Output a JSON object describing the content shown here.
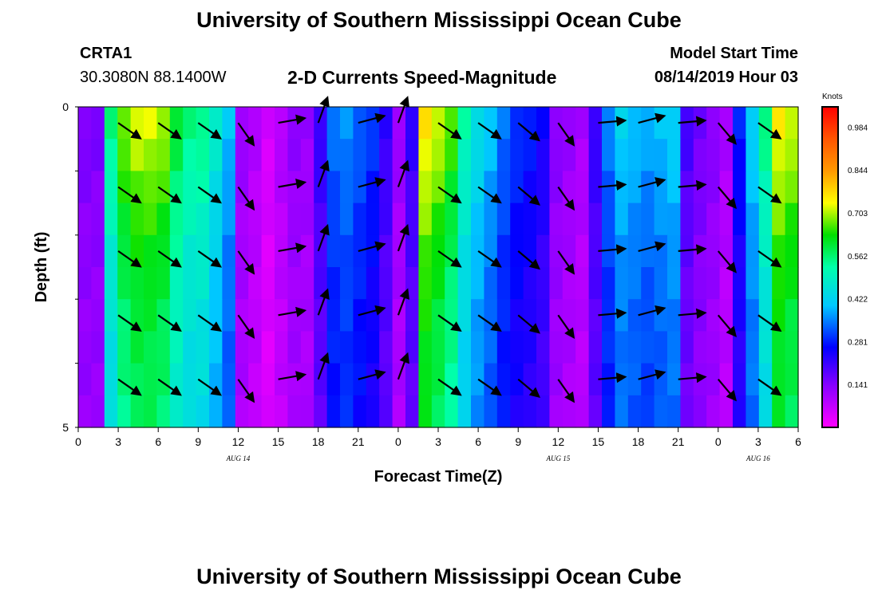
{
  "header": {
    "title_top": "University of Southern Mississippi Ocean Cube",
    "station_id": "CRTA1",
    "station_coords": "30.3080N 88.1400W",
    "plot_title": "2-D Currents Speed-Magnitude",
    "model_start_label": "Model Start Time",
    "model_start_value": "08/14/2019 Hour 03",
    "title_bottom": "University of Southern Mississippi Ocean Cube"
  },
  "chart_data": {
    "type": "heatmap",
    "title": "2-D Currents Speed-Magnitude",
    "xlabel": "Forecast Time(Z)",
    "ylabel": "Depth (ft)",
    "ylim": [
      0,
      5
    ],
    "y_tick_labels": [
      "0",
      "5"
    ],
    "x_tick_labels": [
      "0",
      "3",
      "6",
      "9",
      "12",
      "15",
      "18",
      "21",
      "0",
      "3",
      "6",
      "9",
      "12",
      "15",
      "18",
      "21",
      "0",
      "3",
      "6"
    ],
    "date_labels": [
      {
        "text": "AUG 14",
        "hour_index": 4
      },
      {
        "text": "AUG 15",
        "hour_index": 12
      },
      {
        "text": "AUG 16",
        "hour_index": 17
      }
    ],
    "hours": 55,
    "speed_profile_knots": [
      0.15,
      0.15,
      0.55,
      0.68,
      0.72,
      0.72,
      0.7,
      0.6,
      0.55,
      0.55,
      0.48,
      0.4,
      0.12,
      0.09,
      0.05,
      0.09,
      0.13,
      0.12,
      0.22,
      0.34,
      0.36,
      0.33,
      0.3,
      0.22,
      0.12,
      0.22,
      0.76,
      0.72,
      0.66,
      0.52,
      0.45,
      0.4,
      0.34,
      0.3,
      0.28,
      0.25,
      0.14,
      0.12,
      0.1,
      0.22,
      0.35,
      0.42,
      0.4,
      0.38,
      0.4,
      0.42,
      0.2,
      0.16,
      0.14,
      0.1,
      0.28,
      0.42,
      0.55,
      0.75,
      0.72
    ],
    "depth_factor": [
      1.0,
      0.97,
      0.93,
      0.9,
      0.87,
      0.85,
      0.83,
      0.82,
      0.81,
      0.8
    ],
    "arrows": {
      "hours": [
        3,
        6,
        9,
        12,
        15,
        18,
        21,
        0,
        3,
        6,
        9,
        12,
        15,
        18,
        21,
        0,
        3
      ],
      "day_offset": [
        0,
        0,
        0,
        0,
        0,
        0,
        0,
        1,
        1,
        1,
        1,
        1,
        1,
        1,
        1,
        2,
        2
      ],
      "direction_deg": [
        -35,
        -35,
        -35,
        -55,
        10,
        70,
        15,
        70,
        -35,
        -35,
        -40,
        -55,
        5,
        15,
        5,
        -50,
        -35
      ],
      "depth_rows": [
        0.1,
        1.1,
        2.1,
        3.1,
        4.1
      ]
    },
    "colorbar": {
      "unit": "Knots",
      "labels": [
        "0.984",
        "0.844",
        "0.703",
        "0.562",
        "0.422",
        "0.281",
        "0.141"
      ],
      "min": 0.0,
      "max": 1.05
    }
  }
}
